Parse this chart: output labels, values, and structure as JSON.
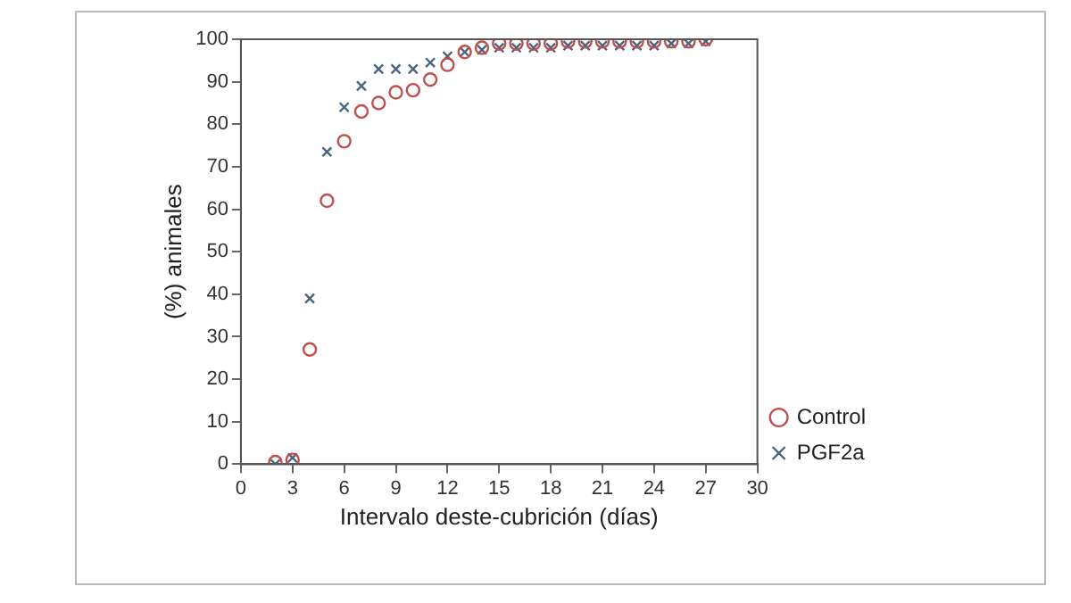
{
  "chart_data": {
    "type": "scatter",
    "xlabel": "Intervalo deste-cubrición (días)",
    "ylabel": "(%) animales",
    "x": [
      2,
      3,
      4,
      5,
      6,
      7,
      8,
      9,
      10,
      11,
      12,
      13,
      14,
      15,
      16,
      17,
      18,
      19,
      20,
      21,
      22,
      23,
      24,
      25,
      26,
      27
    ],
    "xlim": [
      0,
      30
    ],
    "xticks": [
      0,
      3,
      6,
      9,
      12,
      15,
      18,
      21,
      24,
      27,
      30
    ],
    "ylim": [
      0,
      100
    ],
    "yticks": [
      0,
      10,
      20,
      30,
      40,
      50,
      60,
      70,
      80,
      90,
      100
    ],
    "grid": false,
    "legend": "bottom right",
    "series": [
      {
        "name": "Control",
        "color": "#c0504d",
        "marker": "circle",
        "values": [
          0.5,
          1,
          27,
          62,
          76,
          83,
          85,
          87.5,
          88,
          90.5,
          94,
          97,
          98,
          99,
          99,
          99,
          99,
          99.5,
          99.5,
          99.5,
          99.5,
          99.5,
          99.5,
          99.5,
          99.5,
          100
        ]
      },
      {
        "name": "PGF2a",
        "color": "#4a6580",
        "marker": "cross",
        "values": [
          0,
          1.5,
          39,
          73.5,
          84,
          89,
          93,
          93,
          93,
          94.5,
          96,
          97,
          97.5,
          98,
          98,
          98,
          98,
          98.5,
          98.5,
          98.5,
          98.5,
          98.5,
          98.5,
          99,
          99,
          99.5
        ]
      }
    ]
  }
}
